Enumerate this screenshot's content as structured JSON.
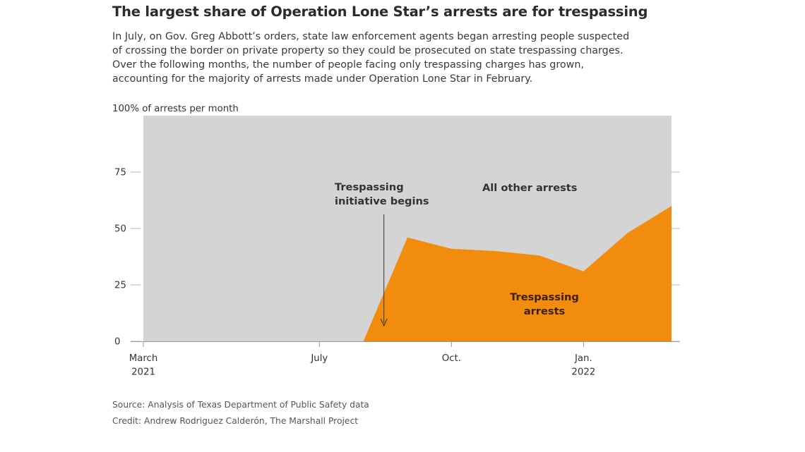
{
  "header": {
    "title": "The largest share of Operation Lone Star’s arrests are for trespassing",
    "subtitle_lines": [
      "In July, on Gov. Greg Abbott’s orders, state law enforcement agents began arresting people suspected",
      "of crossing the border on private property so they could be prosecuted on state trespassing charges.",
      "Over the following months, the number of people facing only trespassing charges has grown,",
      "accounting for the majority of arrests made under Operation Lone Star in February."
    ]
  },
  "footer": {
    "source": "Source: Analysis of Texas Department of Public Safety data",
    "credit": "Credit: Andrew Rodriguez Calderón, The Marshall Project"
  },
  "chart_data": {
    "type": "area",
    "title": "The largest share of Operation Lone Star’s arrests are for trespassing",
    "ylabel": "100% of arrests per month",
    "ylim": [
      0,
      100
    ],
    "xlim": [
      "2021-03",
      "2022-03"
    ],
    "yticks": [
      0,
      25,
      50,
      75
    ],
    "ytick_labels": [
      "0",
      "25",
      "50",
      "75"
    ],
    "xticks": [
      {
        "date": "2021-03",
        "label": [
          "March",
          "2021"
        ]
      },
      {
        "date": "2021-07",
        "label": [
          "July"
        ]
      },
      {
        "date": "2021-10",
        "label": [
          "Oct."
        ]
      },
      {
        "date": "2022-01",
        "label": [
          "Jan.",
          "2022"
        ]
      }
    ],
    "series": [
      {
        "name": "Trespassing arrests",
        "color": "#f28c0f",
        "points": [
          {
            "x": "2021-03",
            "y": 0
          },
          {
            "x": "2021-04",
            "y": 0
          },
          {
            "x": "2021-05",
            "y": 0
          },
          {
            "x": "2021-06",
            "y": 0
          },
          {
            "x": "2021-07",
            "y": 0
          },
          {
            "x": "2021-08",
            "y": 0
          },
          {
            "x": "2021-09",
            "y": 46
          },
          {
            "x": "2021-10",
            "y": 41
          },
          {
            "x": "2021-11",
            "y": 40
          },
          {
            "x": "2021-12",
            "y": 38
          },
          {
            "x": "2022-01",
            "y": 31
          },
          {
            "x": "2022-02",
            "y": 48
          },
          {
            "x": "2022-03",
            "y": 60
          }
        ]
      },
      {
        "name": "All other arrests",
        "color": "#d4d4d4"
      }
    ],
    "annotations": [
      {
        "text": [
          "Trespassing",
          "initiative begins"
        ],
        "x": "2021-08",
        "arrow": true
      },
      {
        "text": [
          "All other arrests"
        ]
      },
      {
        "text": [
          "Trespassing",
          "arrests"
        ]
      }
    ],
    "grid": false
  }
}
